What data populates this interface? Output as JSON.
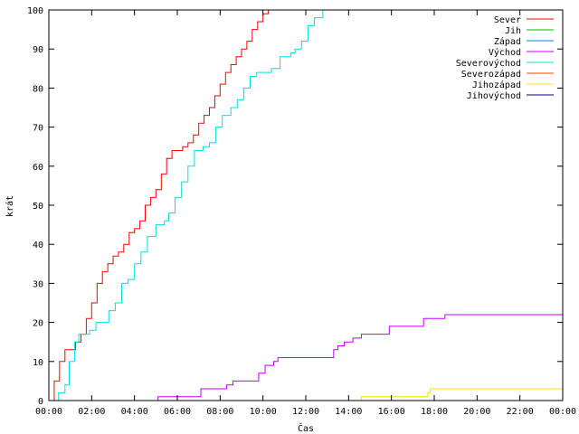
{
  "chart_data": {
    "type": "line",
    "title": "",
    "xlabel": "Čas",
    "ylabel": "krát",
    "xlim": [
      0,
      24
    ],
    "ylim": [
      0,
      100
    ],
    "x_ticks": [
      "00:00",
      "02:00",
      "04:00",
      "06:00",
      "08:00",
      "10:00",
      "12:00",
      "14:00",
      "16:00",
      "18:00",
      "20:00",
      "22:00",
      "00:00"
    ],
    "y_ticks": [
      0,
      10,
      20,
      30,
      40,
      50,
      60,
      70,
      80,
      90,
      100
    ],
    "grid": false,
    "legend_position": "top-right",
    "series": [
      {
        "name": "Sever",
        "color": "#ff0000",
        "points": [
          [
            0,
            0
          ],
          [
            0.25,
            5
          ],
          [
            0.5,
            10
          ],
          [
            0.75,
            13
          ],
          [
            1.0,
            13
          ],
          [
            1.25,
            15
          ],
          [
            1.5,
            17
          ],
          [
            1.75,
            21
          ],
          [
            2.0,
            25
          ],
          [
            2.25,
            30
          ],
          [
            2.5,
            33
          ],
          [
            2.75,
            35
          ],
          [
            3.0,
            37
          ],
          [
            3.25,
            38
          ],
          [
            3.5,
            40
          ],
          [
            3.75,
            43
          ],
          [
            4.0,
            44
          ],
          [
            4.25,
            46
          ],
          [
            4.5,
            50
          ],
          [
            4.75,
            52
          ],
          [
            5.0,
            54
          ],
          [
            5.25,
            58
          ],
          [
            5.5,
            62
          ],
          [
            5.75,
            64
          ],
          [
            6.0,
            64
          ],
          [
            6.25,
            65
          ],
          [
            6.5,
            66
          ],
          [
            6.75,
            68
          ],
          [
            7.0,
            71
          ],
          [
            7.25,
            73
          ],
          [
            7.5,
            75
          ],
          [
            7.75,
            78
          ],
          [
            8.0,
            81
          ],
          [
            8.25,
            84
          ],
          [
            8.5,
            86
          ],
          [
            8.75,
            88
          ],
          [
            9.0,
            90
          ],
          [
            9.25,
            92
          ],
          [
            9.5,
            95
          ],
          [
            9.75,
            97
          ],
          [
            10.0,
            99
          ],
          [
            10.25,
            100
          ]
        ]
      },
      {
        "name": "Jih",
        "color": "#00c000",
        "points": []
      },
      {
        "name": "Západ",
        "color": "#0080ff",
        "points": []
      },
      {
        "name": "Východ",
        "color": "#c000ff",
        "points": [
          [
            0,
            0
          ],
          [
            5,
            0
          ],
          [
            5.1,
            1
          ],
          [
            7,
            1
          ],
          [
            7.1,
            3
          ],
          [
            8.2,
            3
          ],
          [
            8.3,
            4
          ],
          [
            8.6,
            5
          ],
          [
            9.7,
            5
          ],
          [
            9.8,
            7
          ],
          [
            10.1,
            9
          ],
          [
            10.5,
            10
          ],
          [
            10.7,
            11
          ],
          [
            13.1,
            11
          ],
          [
            13.3,
            13
          ],
          [
            13.5,
            14
          ],
          [
            13.8,
            15
          ],
          [
            14.2,
            16
          ],
          [
            14.6,
            17
          ],
          [
            15.8,
            17
          ],
          [
            15.9,
            19
          ],
          [
            17.4,
            19
          ],
          [
            17.5,
            21
          ],
          [
            18.4,
            21
          ],
          [
            18.5,
            22
          ],
          [
            24,
            22
          ]
        ]
      },
      {
        "name": "Severovýchod",
        "color": "#00e0e0",
        "points": [
          [
            0,
            0
          ],
          [
            0.35,
            0
          ],
          [
            0.45,
            2
          ],
          [
            0.75,
            4
          ],
          [
            0.95,
            10
          ],
          [
            1.2,
            15
          ],
          [
            1.4,
            17
          ],
          [
            1.6,
            17
          ],
          [
            1.9,
            18
          ],
          [
            2.2,
            20
          ],
          [
            2.6,
            20
          ],
          [
            2.8,
            23
          ],
          [
            3.1,
            25
          ],
          [
            3.4,
            30
          ],
          [
            3.7,
            31
          ],
          [
            4.0,
            35
          ],
          [
            4.3,
            38
          ],
          [
            4.6,
            42
          ],
          [
            5.0,
            45
          ],
          [
            5.4,
            46
          ],
          [
            5.6,
            48
          ],
          [
            5.9,
            52
          ],
          [
            6.2,
            56
          ],
          [
            6.5,
            60
          ],
          [
            6.8,
            64
          ],
          [
            7.2,
            65
          ],
          [
            7.5,
            66
          ],
          [
            7.8,
            70
          ],
          [
            8.1,
            73
          ],
          [
            8.5,
            75
          ],
          [
            8.8,
            77
          ],
          [
            9.1,
            80
          ],
          [
            9.4,
            83
          ],
          [
            9.7,
            84
          ],
          [
            10.1,
            84
          ],
          [
            10.4,
            85
          ],
          [
            10.8,
            88
          ],
          [
            11.3,
            89
          ],
          [
            11.5,
            90
          ],
          [
            11.8,
            92
          ],
          [
            12.1,
            96
          ],
          [
            12.4,
            98
          ],
          [
            12.8,
            100
          ]
        ]
      },
      {
        "name": "Severozápad",
        "color": "#ff4000",
        "points": []
      },
      {
        "name": "Jihozápad",
        "color": "#ffe000",
        "points": [
          [
            14.5,
            0
          ],
          [
            14.6,
            1
          ],
          [
            17.6,
            1
          ],
          [
            17.7,
            2
          ],
          [
            17.8,
            3
          ],
          [
            24,
            3
          ]
        ]
      },
      {
        "name": "Jihovýchod",
        "color": "#000080",
        "points": []
      }
    ]
  }
}
